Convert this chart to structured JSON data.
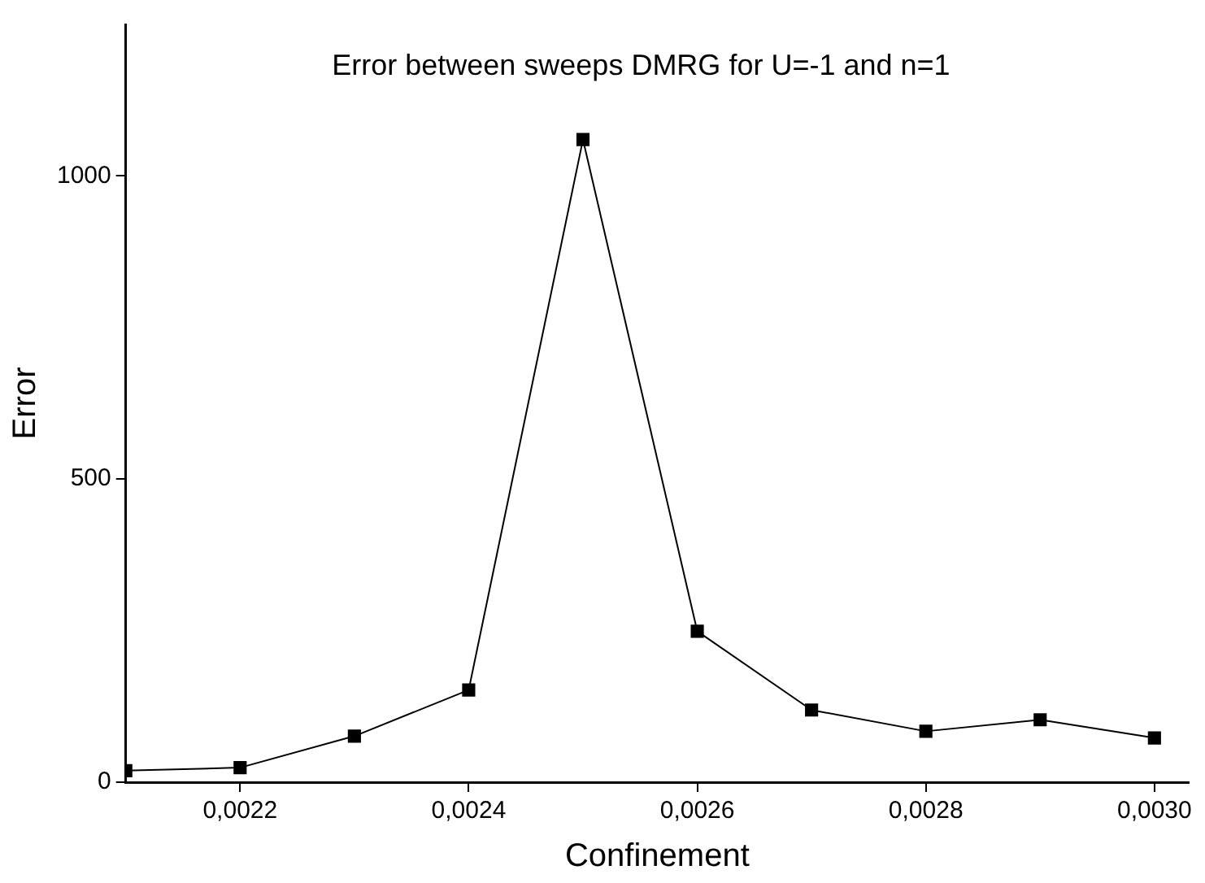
{
  "chart_data": {
    "type": "line",
    "title": "Error between sweeps DMRG for U=-1 and n=1",
    "xlabel": "Confinement",
    "ylabel": "Error",
    "x": [
      0.0021,
      0.0022,
      0.0023,
      0.0024,
      0.0025,
      0.0026,
      0.0027,
      0.0028,
      0.0029,
      0.003
    ],
    "series": [
      {
        "color": "#000000",
        "values": [
          19,
          24,
          76,
          152,
          1060,
          249,
          119,
          84,
          103,
          73
        ]
      }
    ],
    "xlim": [
      0.0021,
      0.00303
    ],
    "ylim": [
      0,
      1250
    ],
    "xticks": [
      {
        "value": 0.0022,
        "label": "0,0022"
      },
      {
        "value": 0.0024,
        "label": "0,0024"
      },
      {
        "value": 0.0026,
        "label": "0,0026"
      },
      {
        "value": 0.0028,
        "label": "0,0028"
      },
      {
        "value": 0.003,
        "label": "0,0030"
      }
    ],
    "yticks": [
      0,
      500,
      1000
    ],
    "grid": false,
    "legend": false,
    "marker": "square",
    "line_style": "solid"
  }
}
